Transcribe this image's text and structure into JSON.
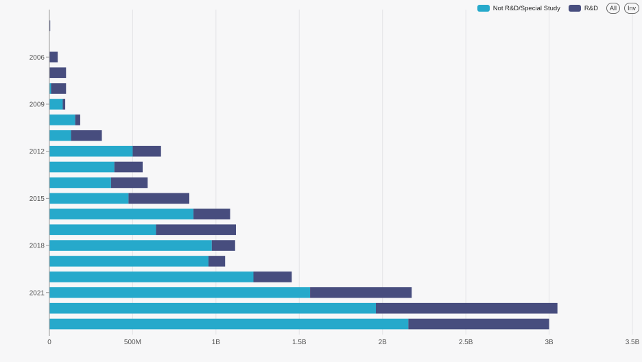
{
  "legend": {
    "series_a": "Not R&D/Special Study",
    "series_b": "R&D",
    "all_button": "All",
    "inv_button": "Inv"
  },
  "colors": {
    "series_a": "#26a9cb",
    "series_b": "#474d7e",
    "grid": "#e3e3e6",
    "axis": "#999999"
  },
  "chart_data": {
    "type": "bar",
    "orientation": "horizontal",
    "stacked": true,
    "categories": [
      "2004",
      "2005",
      "2006",
      "2007",
      "2008",
      "2009",
      "2010",
      "2011",
      "2012",
      "2013",
      "2014",
      "2015",
      "2016",
      "2017",
      "2018",
      "2019",
      "2020",
      "2021",
      "2022",
      "2023"
    ],
    "category_tick_labels": [
      "2006",
      "2009",
      "2012",
      "2015",
      "2018",
      "2021"
    ],
    "series": [
      {
        "name": "Not R&D/Special Study",
        "values": [
          0,
          0,
          0,
          0,
          10000000,
          80000000,
          155000000,
          130000000,
          500000000,
          390000000,
          370000000,
          475000000,
          865000000,
          640000000,
          975000000,
          955000000,
          1225000000,
          1565000000,
          1960000000,
          2155000000
        ]
      },
      {
        "name": "R&D",
        "values": [
          5000000,
          0,
          50000000,
          100000000,
          90000000,
          15000000,
          30000000,
          185000000,
          170000000,
          170000000,
          220000000,
          365000000,
          220000000,
          480000000,
          140000000,
          100000000,
          230000000,
          610000000,
          1090000000,
          845000000
        ]
      }
    ],
    "x_ticks": [
      "0",
      "500M",
      "1B",
      "1.5B",
      "2B",
      "2.5B",
      "3B",
      "3.5B"
    ],
    "xlim": [
      0,
      3500000000
    ],
    "grid": true,
    "legend_position": "top-right"
  }
}
